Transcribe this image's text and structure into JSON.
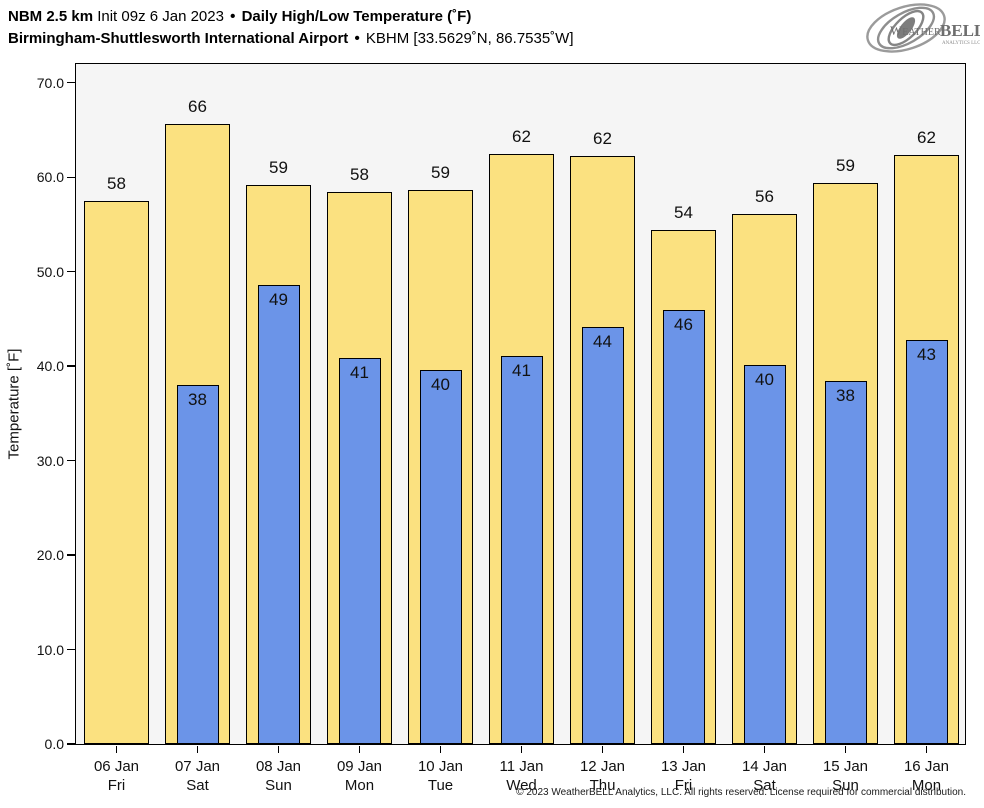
{
  "header": {
    "title_model": "NBM 2.5 km",
    "title_init": "Init 09z 6 Jan 2023",
    "separator": "•",
    "title_product": "Daily High/Low Temperature (˚F)",
    "subtitle_station": "Birmingham-Shuttlesworth International Airport",
    "subtitle_id": "KBHM [33.5629˚N, 86.7535˚W]"
  },
  "logo": {
    "name": "weatherbell-logo",
    "brand_weather": "Weather",
    "brand_bell": "BELL",
    "brand_sub": "Analytics LLC"
  },
  "footer": {
    "copyright": "© 2023 WeatherBELL Analytics, LLC. All rights reserved. License required for commercial distribution."
  },
  "chart_data": {
    "type": "bar",
    "title": "NBM 2.5 km Init 09z 6 Jan 2023 • Daily High/Low Temperature (˚F)",
    "station": "Birmingham-Shuttlesworth International Airport • KBHM [33.5629˚N, 86.7535˚W]",
    "xlabel": "",
    "ylabel": "Temperature [˚F]",
    "ylim": [
      0,
      72.2
    ],
    "yticks": [
      "0.0",
      "10.0",
      "20.0",
      "30.0",
      "40.0",
      "50.0",
      "60.0",
      "70.0"
    ],
    "ytick_values": [
      0,
      10,
      20,
      30,
      40,
      50,
      60,
      70
    ],
    "grid": false,
    "legend": "none",
    "plot_background": "#f5f5f5",
    "bar_border_color": "#000000",
    "categories": [
      {
        "date": "06 Jan",
        "day": "Fri"
      },
      {
        "date": "07 Jan",
        "day": "Sat"
      },
      {
        "date": "08 Jan",
        "day": "Sun"
      },
      {
        "date": "09 Jan",
        "day": "Mon"
      },
      {
        "date": "10 Jan",
        "day": "Tue"
      },
      {
        "date": "11 Jan",
        "day": "Wed"
      },
      {
        "date": "12 Jan",
        "day": "Thu"
      },
      {
        "date": "13 Jan",
        "day": "Fri"
      },
      {
        "date": "14 Jan",
        "day": "Sat"
      },
      {
        "date": "15 Jan",
        "day": "Sun"
      },
      {
        "date": "16 Jan",
        "day": "Mon"
      }
    ],
    "series": [
      {
        "name": "Daily High",
        "color": "#fbe180",
        "labels": [
          58,
          66,
          59,
          58,
          59,
          62,
          62,
          54,
          56,
          59,
          62
        ],
        "values": [
          57.5,
          65.6,
          59.2,
          58.4,
          58.7,
          62.5,
          62.2,
          54.4,
          56.1,
          59.4,
          62.4
        ]
      },
      {
        "name": "Daily Low",
        "color": "#6b94e8",
        "labels": [
          null,
          38,
          49,
          41,
          40,
          41,
          44,
          46,
          40,
          38,
          43
        ],
        "values": [
          null,
          38.0,
          48.6,
          40.9,
          39.6,
          41.1,
          44.1,
          45.9,
          40.1,
          38.4,
          42.8
        ]
      }
    ]
  }
}
